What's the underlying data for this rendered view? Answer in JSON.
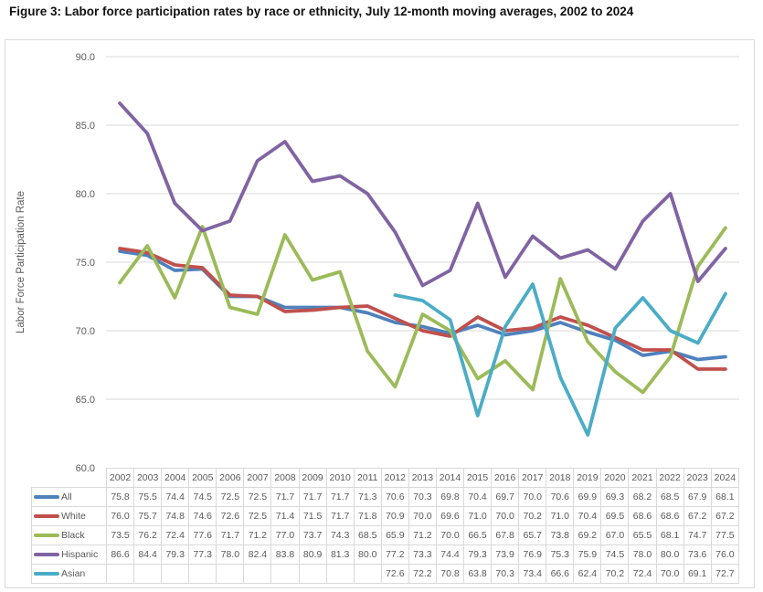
{
  "figure": {
    "title": "Figure 3: Labor force participation rates by race or ethnicity, July 12-month moving averages, 2002 to 2024"
  },
  "chart_data": {
    "type": "line",
    "title": "Figure 3: Labor force participation rates by race or ethnicity, July 12-month moving averages, 2002 to 2024",
    "xlabel": "",
    "ylabel": "Labor Force Participation Rate",
    "ylim": [
      60,
      90
    ],
    "yticks": [
      60,
      65,
      70,
      75,
      80,
      85,
      90
    ],
    "ytick_format_decimals": 1,
    "grid": true,
    "legend_position": "data-table-left",
    "gridline_color": "#d9d9d9",
    "axis_text_color": "#595959",
    "categories": [
      "2002",
      "2003",
      "2004",
      "2005",
      "2006",
      "2007",
      "2008",
      "2009",
      "2010",
      "2011",
      "2012",
      "2013",
      "2014",
      "2015",
      "2016",
      "2017",
      "2018",
      "2019",
      "2020",
      "2021",
      "2022",
      "2023",
      "2024"
    ],
    "series": [
      {
        "name": "All",
        "color": "#4F81BD",
        "values": [
          75.8,
          75.5,
          74.4,
          74.5,
          72.5,
          72.5,
          71.7,
          71.7,
          71.7,
          71.3,
          70.6,
          70.3,
          69.8,
          70.4,
          69.7,
          70.0,
          70.6,
          69.9,
          69.3,
          68.2,
          68.5,
          67.9,
          68.1
        ]
      },
      {
        "name": "White",
        "color": "#C0504D",
        "values": [
          76.0,
          75.7,
          74.8,
          74.6,
          72.6,
          72.5,
          71.4,
          71.5,
          71.7,
          71.8,
          70.9,
          70.0,
          69.6,
          71.0,
          70.0,
          70.2,
          71.0,
          70.4,
          69.5,
          68.6,
          68.6,
          67.2,
          67.2
        ]
      },
      {
        "name": "Black",
        "color": "#9BBB59",
        "values": [
          73.5,
          76.2,
          72.4,
          77.6,
          71.7,
          71.2,
          77.0,
          73.7,
          74.3,
          68.5,
          65.9,
          71.2,
          70.0,
          66.5,
          67.8,
          65.7,
          73.8,
          69.2,
          67.0,
          65.5,
          68.1,
          74.7,
          77.5
        ]
      },
      {
        "name": "Hispanic",
        "color": "#8064A2",
        "values": [
          86.6,
          84.4,
          79.3,
          77.3,
          78.0,
          82.4,
          83.8,
          80.9,
          81.3,
          80.0,
          77.2,
          73.3,
          74.4,
          79.3,
          73.9,
          76.9,
          75.3,
          75.9,
          74.5,
          78.0,
          80.0,
          73.6,
          76.0
        ]
      },
      {
        "name": "Asian",
        "color": "#4BACC6",
        "values": [
          null,
          null,
          null,
          null,
          null,
          null,
          null,
          null,
          null,
          null,
          72.6,
          72.2,
          70.8,
          63.8,
          70.3,
          73.4,
          66.6,
          62.4,
          70.2,
          72.4,
          70.0,
          69.1,
          72.7
        ]
      }
    ]
  }
}
